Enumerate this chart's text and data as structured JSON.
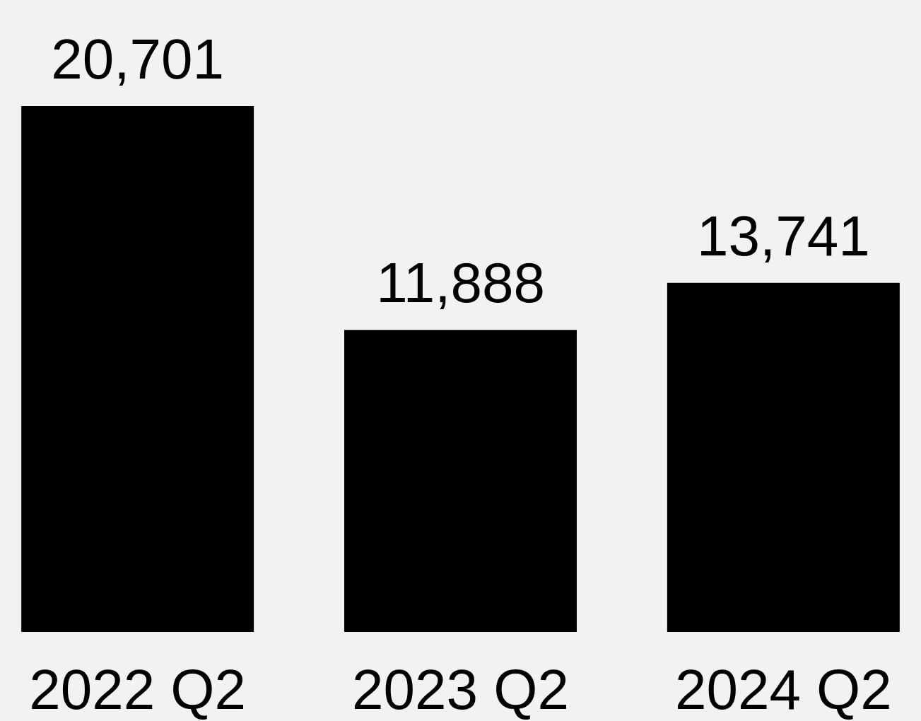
{
  "chart_data": {
    "type": "bar",
    "categories": [
      "2022 Q2",
      "2023 Q2",
      "2024 Q2"
    ],
    "values": [
      20701,
      11888,
      13741
    ],
    "value_labels": [
      "20,701",
      "11,888",
      "13,741"
    ],
    "color": "#000000"
  }
}
